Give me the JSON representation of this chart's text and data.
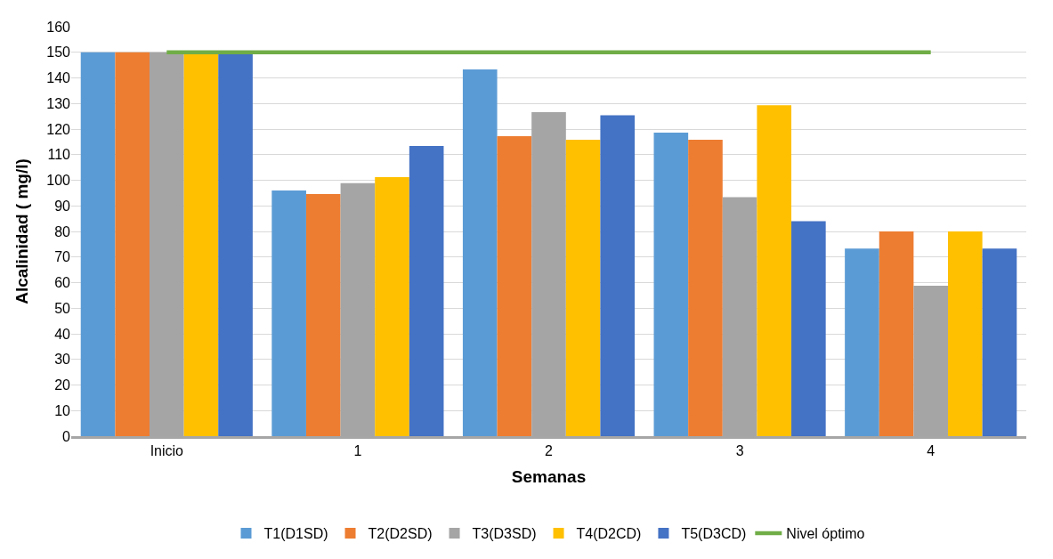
{
  "chart_data": {
    "type": "bar",
    "xlabel": "Semanas",
    "ylabel": "Alcalinidad ( mg/l)",
    "categories": [
      "Inicio",
      "1",
      "2",
      "3",
      "4"
    ],
    "series": [
      {
        "name": "T1(D1SD)",
        "color": "#5b9bd5",
        "values": [
          150,
          96,
          143.3,
          118.6,
          73.3
        ]
      },
      {
        "name": "T2(D2SD)",
        "color": "#ed7d31",
        "values": [
          150,
          94.6,
          117.2,
          115.8,
          80
        ]
      },
      {
        "name": "T3(D3SD)",
        "color": "#a5a5a5",
        "values": [
          150,
          98.9,
          126.6,
          93.4,
          58.8
        ]
      },
      {
        "name": "T4(D2CD)",
        "color": "#ffc000",
        "values": [
          150,
          101.2,
          115.8,
          129.3,
          80
        ]
      },
      {
        "name": "T5(D3CD)",
        "color": "#4472c4",
        "values": [
          150,
          113.4,
          125.4,
          84,
          73.3
        ]
      },
      {
        "name": "Nivel óptimo",
        "color": "#70ad47",
        "type": "line",
        "marker": "none",
        "values": [
          150,
          150,
          150,
          150,
          150
        ]
      }
    ],
    "ylim": [
      0,
      160
    ],
    "yticks": [
      0,
      10,
      20,
      30,
      40,
      50,
      60,
      70,
      80,
      90,
      100,
      110,
      120,
      130,
      140,
      150,
      160
    ],
    "grid": "y",
    "legend": "bottom"
  }
}
